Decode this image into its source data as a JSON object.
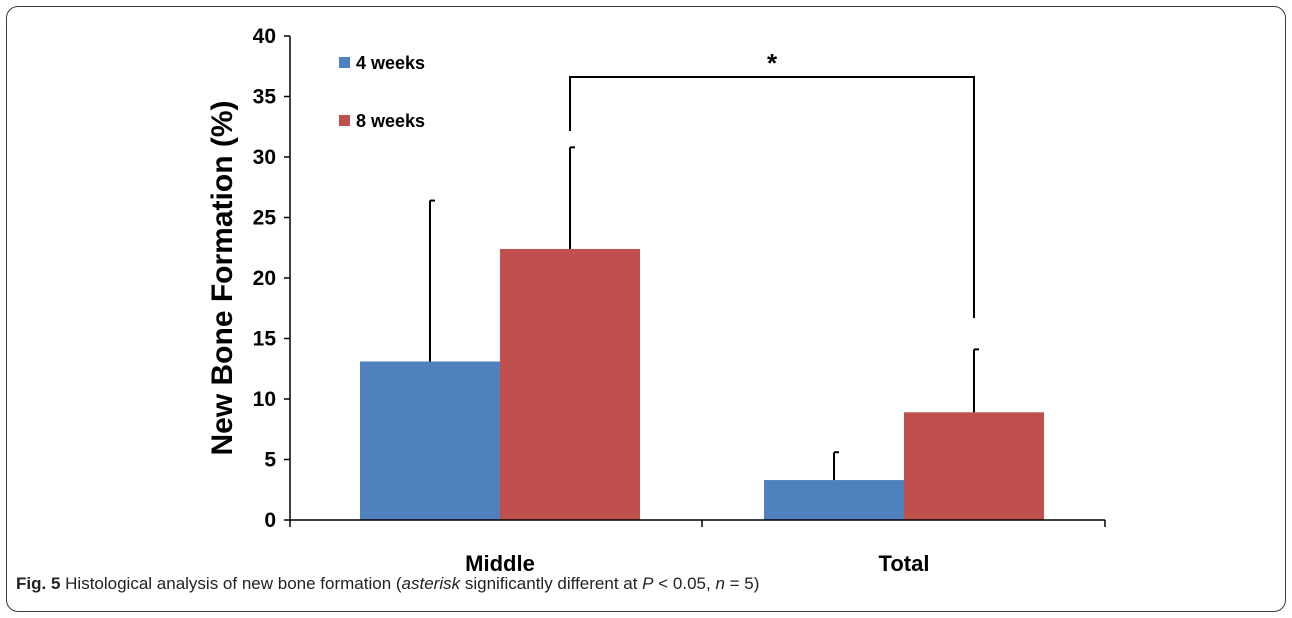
{
  "chart_data": {
    "type": "bar",
    "categories": [
      "Middle",
      "Total"
    ],
    "series": [
      {
        "name": "4 weeks",
        "color": "#4F81BD",
        "values": [
          13.1,
          3.3
        ],
        "errors": [
          13.3,
          2.3
        ]
      },
      {
        "name": "8 weeks",
        "color": "#C0504D",
        "values": [
          22.4,
          8.9
        ],
        "errors": [
          8.4,
          5.2
        ]
      }
    ],
    "ylabel": "New Bone Formation (%)",
    "xlabel": "",
    "ylim": [
      0,
      40
    ],
    "yticks": [
      0,
      5,
      10,
      15,
      20,
      25,
      30,
      35,
      40
    ],
    "grid": false,
    "legend": {
      "position": "top-left",
      "entries": [
        "4 weeks",
        "8 weeks"
      ]
    },
    "annotations": [
      {
        "text": "*",
        "type": "significance-bracket",
        "from": "Middle · 8 weeks",
        "to": "Total · 8 weeks"
      }
    ]
  },
  "caption": {
    "label": "Fig. 5",
    "text_before": "Histological analysis of new bone formation (",
    "italic1": "asterisk",
    "text_mid": " significantly different at ",
    "italic2": "P",
    "text_mid2": " < 0.05, ",
    "italic3": "n",
    "text_end": " = 5)"
  }
}
